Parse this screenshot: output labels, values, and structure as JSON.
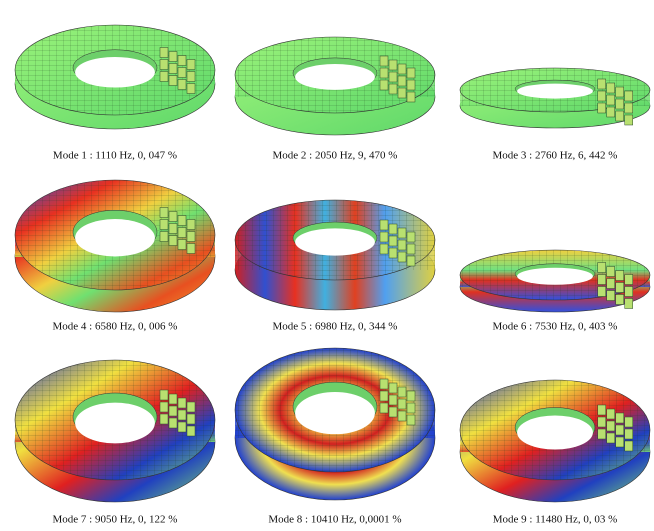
{
  "modes": [
    {
      "caption": "Mode 1 : 1110 Hz, 0, 047 %"
    },
    {
      "caption": "Mode 2 : 2050 Hz, 9, 470 %"
    },
    {
      "caption": "Mode 3 : 2760 Hz, 6, 442 %"
    },
    {
      "caption": "Mode 4 : 6580 Hz, 0, 006 %"
    },
    {
      "caption": "Mode 5 : 6980 Hz, 0, 344 %"
    },
    {
      "caption": "Mode 6 : 7530 Hz, 0, 403 %"
    },
    {
      "caption": "Mode 7 : 9050 Hz, 0, 122 %"
    },
    {
      "caption": "Mode 8 : 10410 Hz, 0,0001 %"
    },
    {
      "caption": "Mode 9 : 11480 Hz, 0, 03 %"
    }
  ]
}
